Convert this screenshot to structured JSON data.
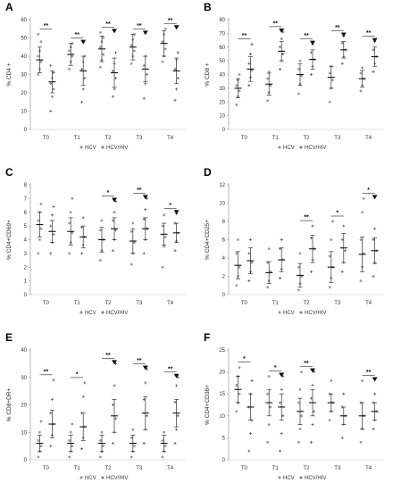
{
  "chart_data": [
    {
      "panel": "A",
      "type": "scatter",
      "ylabel": "% CD4 +",
      "ylim": [
        0,
        60
      ],
      "yticks": [
        0,
        10,
        20,
        30,
        40,
        50,
        60
      ],
      "categories": [
        "T0",
        "T1",
        "T2",
        "T3",
        "T4"
      ],
      "legend": [
        "HCV",
        "HCV/HIV"
      ],
      "series": [
        {
          "name": "HCV",
          "mean": [
            38,
            41,
            44,
            45,
            47
          ],
          "sd": [
            7,
            6,
            7,
            7,
            7
          ],
          "points": [
            [
              30,
              33,
              37,
              40,
              43,
              48,
              52
            ],
            [
              33,
              37,
              40,
              43,
              45,
              47
            ],
            [
              34,
              38,
              41,
              45,
              48,
              50,
              53
            ],
            [
              36,
              40,
              43,
              46,
              49,
              52
            ],
            [
              37,
              40,
              44,
              48,
              52,
              55
            ]
          ]
        },
        {
          "name": "HCV/HIV",
          "mean": [
            26,
            32,
            31,
            33,
            32
          ],
          "sd": [
            6,
            8,
            8,
            7,
            7
          ],
          "points": [
            [
              10,
              18,
              22,
              25,
              28,
              31,
              35
            ],
            [
              15,
              22,
              28,
              33,
              37,
              40
            ],
            [
              18,
              22,
              28,
              32,
              36,
              42
            ],
            [
              17,
              25,
              30,
              35,
              40
            ],
            [
              16,
              22,
              28,
              33,
              38,
              42
            ]
          ]
        }
      ],
      "annotations": [
        "**",
        "**",
        "**",
        "**",
        "**"
      ],
      "arrows": [
        false,
        true,
        true,
        true,
        true
      ]
    },
    {
      "panel": "B",
      "type": "scatter",
      "ylabel": "% CD8 +",
      "ylim": [
        0,
        80
      ],
      "yticks": [
        0,
        10,
        20,
        30,
        40,
        50,
        60,
        70,
        80
      ],
      "categories": [
        "T0",
        "T1",
        "T2",
        "T3",
        "T4"
      ],
      "legend": [
        "HCV",
        "HCV/HIV"
      ],
      "series": [
        {
          "name": "HCV",
          "mean": [
            30,
            33,
            40,
            38,
            37
          ],
          "sd": [
            7,
            8,
            8,
            8,
            6
          ],
          "points": [
            [
              18,
              24,
              28,
              32,
              36,
              40
            ],
            [
              21,
              27,
              32,
              37,
              42
            ],
            [
              26,
              33,
              39,
              44,
              50
            ],
            [
              20,
              30,
              36,
              41,
              46
            ],
            [
              28,
              32,
              37,
              41,
              45
            ]
          ]
        },
        {
          "name": "HCV/HIV",
          "mean": [
            44,
            57,
            51,
            58,
            53
          ],
          "sd": [
            9,
            7,
            7,
            6,
            7
          ],
          "points": [
            [
              32,
              38,
              43,
              48,
              55,
              62
            ],
            [
              44,
              50,
              55,
              60,
              66,
              71
            ],
            [
              40,
              46,
              51,
              56,
              62
            ],
            [
              48,
              53,
              58,
              63,
              68
            ],
            [
              42,
              48,
              53,
              58,
              64
            ]
          ]
        }
      ],
      "annotations": [
        "**",
        "**",
        "**",
        "**",
        "**"
      ],
      "arrows": [
        false,
        true,
        true,
        true,
        true
      ]
    },
    {
      "panel": "C",
      "type": "scatter",
      "ylabel": "% CD4+CD69+",
      "ylim": [
        0,
        8
      ],
      "yticks": [
        0,
        1,
        2,
        3,
        4,
        5,
        6,
        7,
        8
      ],
      "categories": [
        "T0",
        "T1",
        "T2",
        "T3",
        "T4"
      ],
      "legend": [
        "HCV",
        "HCV/HIV"
      ],
      "series": [
        {
          "name": "HCV",
          "mean": [
            5.1,
            4.6,
            4.0,
            3.9,
            4.4
          ],
          "sd": [
            0.9,
            1.0,
            0.9,
            0.9,
            0.8
          ],
          "points": [
            [
              3.0,
              4.0,
              4.8,
              5.4,
              6.0,
              6.6
            ],
            [
              3.0,
              3.8,
              4.5,
              5.2,
              6.0,
              7.0
            ],
            [
              2.5,
              3.2,
              4.0,
              4.7,
              5.4
            ],
            [
              2.2,
              3.0,
              3.8,
              4.6,
              5.2
            ],
            [
              2.0,
              3.5,
              4.2,
              5.0,
              5.8
            ]
          ]
        },
        {
          "name": "HCV/HIV",
          "mean": [
            4.6,
            4.2,
            4.8,
            4.8,
            4.5
          ],
          "sd": [
            0.8,
            0.8,
            0.8,
            0.8,
            0.7
          ],
          "points": [
            [
              3.0,
              3.8,
              4.4,
              5.0,
              5.8,
              6.4
            ],
            [
              3.0,
              3.6,
              4.2,
              4.9,
              5.6
            ],
            [
              3.2,
              4.0,
              4.7,
              5.4,
              6.0,
              6.8
            ],
            [
              3.0,
              4.0,
              4.8,
              5.5,
              6.2,
              7.0
            ],
            [
              3.2,
              3.9,
              4.5,
              5.2,
              5.9
            ]
          ]
        }
      ],
      "annotations": [
        "",
        "",
        "*",
        "**",
        "*"
      ],
      "arrows": [
        false,
        false,
        true,
        true,
        true
      ]
    },
    {
      "panel": "D",
      "type": "scatter",
      "ylabel": "% CD4+CD25+",
      "ylim": [
        0,
        12
      ],
      "yticks": [
        0,
        2,
        4,
        6,
        8,
        10,
        12
      ],
      "categories": [
        "T0",
        "T1",
        "T2",
        "T3",
        "T4"
      ],
      "legend": [
        "HCV",
        "HCV/HIV"
      ],
      "series": [
        {
          "name": "HCV",
          "mean": [
            3.2,
            2.4,
            2.1,
            3.0,
            4.4
          ],
          "sd": [
            1.5,
            1.2,
            1.3,
            1.7,
            1.9
          ],
          "points": [
            [
              1.0,
              2.0,
              3.0,
              4.5,
              6.0
            ],
            [
              0.8,
              1.5,
              2.5,
              3.5,
              5.0
            ],
            [
              0.5,
              1.2,
              2.0,
              3.0,
              4.5
            ],
            [
              0.8,
              1.8,
              3.0,
              4.2,
              6.0,
              8.0
            ],
            [
              1.5,
              3.0,
              4.5,
              6.0,
              9.0,
              10.5
            ]
          ]
        },
        {
          "name": "HCV/HIV",
          "mean": [
            3.7,
            3.8,
            5.0,
            5.1,
            4.8
          ],
          "sd": [
            1.4,
            1.3,
            1.5,
            1.6,
            1.4
          ],
          "points": [
            [
              1.5,
              2.5,
              3.5,
              4.5,
              6.0
            ],
            [
              1.8,
              2.8,
              3.8,
              5.0,
              6.0
            ],
            [
              2.5,
              3.8,
              5.0,
              6.2,
              7.5
            ],
            [
              2.5,
              3.5,
              4.8,
              6.0,
              7.5
            ],
            [
              2.0,
              3.5,
              4.8,
              6.0,
              7.2
            ]
          ]
        }
      ],
      "annotations": [
        "",
        "",
        "**",
        "*",
        "*"
      ],
      "arrows": [
        false,
        false,
        false,
        false,
        true
      ]
    },
    {
      "panel": "E",
      "type": "scatter",
      "ylabel": "% CD8+DR+",
      "ylim": [
        0,
        40
      ],
      "yticks": [
        0,
        10,
        20,
        30,
        40
      ],
      "categories": [
        "T0",
        "T1",
        "T2",
        "T3",
        "T4"
      ],
      "legend": [
        "HCV",
        "HCV/HIV"
      ],
      "series": [
        {
          "name": "HCV",
          "mean": [
            6,
            6,
            6,
            6,
            6
          ],
          "sd": [
            3,
            3,
            3,
            3,
            3
          ],
          "points": [
            [
              1,
              3,
              5,
              7,
              10,
              14
            ],
            [
              1,
              3,
              5,
              7,
              10,
              13
            ],
            [
              1,
              3,
              5,
              7,
              10
            ],
            [
              1,
              3,
              5,
              8,
              11
            ],
            [
              1,
              3,
              5,
              7,
              10
            ]
          ]
        },
        {
          "name": "HCV/HIV",
          "mean": [
            13,
            12,
            16,
            17,
            17
          ],
          "sd": [
            5,
            5,
            6,
            6,
            5
          ],
          "points": [
            [
              5,
              9,
              13,
              17,
              22,
              29
            ],
            [
              4,
              8,
              12,
              17,
              23,
              28
            ],
            [
              6,
              10,
              15,
              20,
              27,
              35
            ],
            [
              6,
              11,
              16,
              22,
              28,
              33
            ],
            [
              6,
              11,
              16,
              21,
              27,
              30
            ]
          ]
        }
      ],
      "annotations": [
        "**",
        "*",
        "**",
        "**",
        "**"
      ],
      "arrows": [
        false,
        false,
        true,
        true,
        true
      ]
    },
    {
      "panel": "F",
      "type": "scatter",
      "ylabel": "% CD4+CD38+",
      "ylim": [
        0,
        25
      ],
      "yticks": [
        0,
        5,
        10,
        15,
        20,
        25
      ],
      "categories": [
        "T0",
        "T1",
        "T2",
        "T3",
        "T4"
      ],
      "legend": [
        "HCV",
        "HCV/HIV"
      ],
      "series": [
        {
          "name": "HCV",
          "mean": [
            16,
            13,
            11,
            13,
            10
          ],
          "sd": [
            3,
            3,
            3,
            2,
            3
          ],
          "points": [
            [
              11,
              13,
              15,
              17,
              19,
              21
            ],
            [
              4,
              8,
              12,
              15,
              19
            ],
            [
              4,
              7,
              10,
              13,
              16,
              20
            ],
            [
              9,
              11,
              13,
              15,
              18
            ],
            [
              4,
              7,
              10,
              13,
              18
            ]
          ]
        },
        {
          "name": "HCV/HIV",
          "mean": [
            12,
            12,
            13,
            10,
            11
          ],
          "sd": [
            3,
            3,
            3,
            2,
            2
          ],
          "points": [
            [
              2,
              6,
              9,
              12,
              15,
              18
            ],
            [
              2,
              6,
              10,
              13,
              16,
              19
            ],
            [
              4,
              8,
              11,
              14,
              17,
              20
            ],
            [
              5,
              8,
              10,
              12,
              15
            ],
            [
              7,
              9,
              11,
              13,
              15
            ]
          ]
        }
      ],
      "annotations": [
        "*",
        "*",
        "**",
        "",
        "**"
      ],
      "arrows": [
        false,
        true,
        true,
        false,
        true
      ]
    }
  ]
}
